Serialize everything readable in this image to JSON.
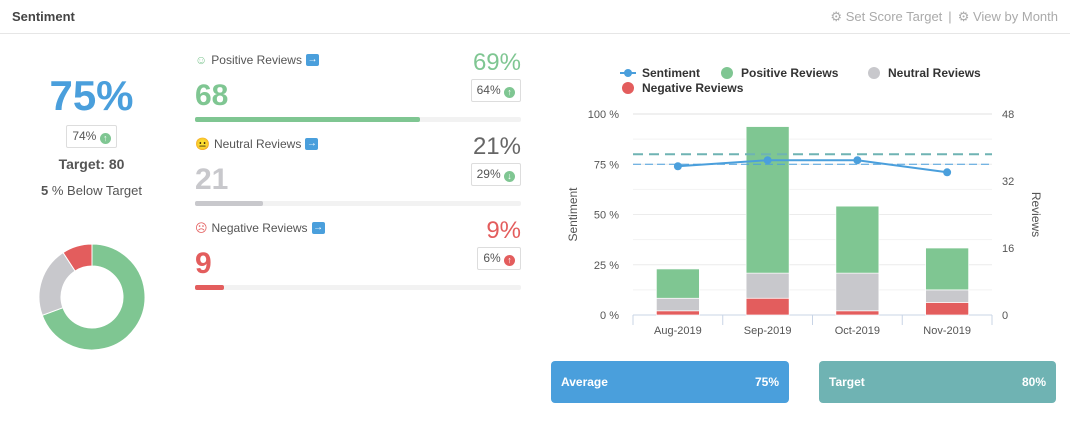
{
  "header": {
    "title": "Sentiment",
    "set_target": "Set Score Target",
    "view_by_month": "View by Month",
    "separator": "|"
  },
  "summary": {
    "score": "75%",
    "previous": "74%",
    "previous_trend": "up",
    "target": "Target: 80",
    "below_value": "5",
    "below_text": " % Below Target"
  },
  "colors": {
    "positive": "#7fc692",
    "neutral": "#c8c8cc",
    "negative": "#e35d5d",
    "sentiment": "#4a9fdc",
    "target": "#6fb3b3"
  },
  "categories": [
    {
      "label": "Positive Reviews",
      "icon": "smile-icon",
      "count": "68",
      "percent": "69%",
      "previous": "64%",
      "trend": "up",
      "fill": 69
    },
    {
      "label": "Neutral Reviews",
      "icon": "neutral-face-icon",
      "count": "21",
      "percent": "21%",
      "previous": "29%",
      "trend": "down",
      "fill": 21
    },
    {
      "label": "Negative Reviews",
      "icon": "frown-icon",
      "count": "9",
      "percent": "9%",
      "previous": "6%",
      "trend": "up",
      "fill": 9
    }
  ],
  "donut": {
    "values": [
      68,
      21,
      9
    ]
  },
  "chart_data": {
    "type": "bar",
    "categories": [
      "Aug-2019",
      "Sep-2019",
      "Oct-2019",
      "Nov-2019"
    ],
    "series": [
      {
        "name": "Sentiment",
        "type": "line",
        "axis": "left",
        "values": [
          74,
          77,
          77,
          71
        ]
      },
      {
        "name": "Positive Reviews",
        "type": "bar",
        "axis": "right",
        "values": [
          7,
          35,
          16,
          10
        ]
      },
      {
        "name": "Neutral Reviews",
        "type": "bar",
        "axis": "right",
        "values": [
          3,
          6,
          9,
          3
        ]
      },
      {
        "name": "Negative Reviews",
        "type": "bar",
        "axis": "right",
        "values": [
          1,
          4,
          1,
          3
        ]
      }
    ],
    "legend_order": [
      "Sentiment",
      "Positive Reviews",
      "Neutral Reviews",
      "Negative Reviews"
    ],
    "ylabel": "Sentiment",
    "y2label": "Reviews",
    "ylim": [
      0,
      100
    ],
    "y2lim": [
      0,
      48
    ],
    "yticks": [
      "0 %",
      "25 %",
      "50 %",
      "75 %",
      "100 %"
    ],
    "y2ticks": [
      "0",
      "16",
      "32",
      "48"
    ],
    "reference_lines": [
      {
        "value": 80,
        "label": "Target"
      },
      {
        "value": 75,
        "label": "Average"
      }
    ],
    "stacked": true,
    "legend": "top",
    "grid": true
  },
  "tiles": {
    "average_label": "Average",
    "average_value": "75%",
    "target_label": "Target",
    "target_value": "80%"
  }
}
